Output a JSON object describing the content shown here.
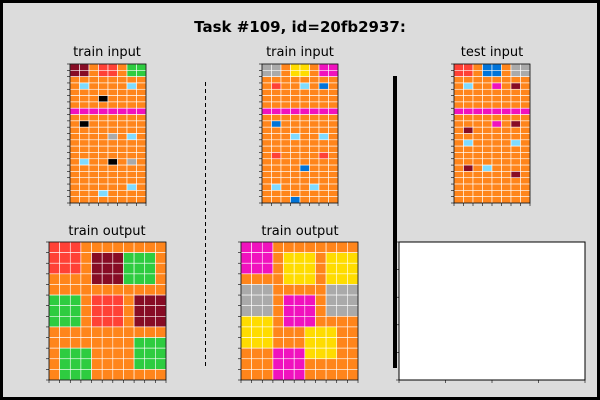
{
  "title": "Task #109, id=20fb2937:",
  "labels": {
    "train_input": "train input",
    "test_input": "test input",
    "train_output": "train output"
  },
  "palette": {
    "0": "#000000",
    "1": "#0074D9",
    "2": "#FF4136",
    "3": "#2ECC40",
    "4": "#FFDC00",
    "5": "#AAAAAA",
    "6": "#F012BE",
    "7": "#FF851B",
    "8": "#7FDBFF",
    "9": "#870C25"
  },
  "grids": {
    "train_input_1": [
      [
        9,
        9,
        7,
        2,
        2,
        7,
        3,
        3
      ],
      [
        9,
        9,
        7,
        2,
        2,
        7,
        3,
        3
      ],
      [
        7,
        7,
        7,
        7,
        7,
        7,
        7,
        7
      ],
      [
        7,
        8,
        7,
        7,
        7,
        7,
        8,
        7
      ],
      [
        7,
        7,
        7,
        7,
        7,
        7,
        7,
        7
      ],
      [
        7,
        7,
        7,
        0,
        7,
        7,
        7,
        7
      ],
      [
        7,
        7,
        7,
        7,
        7,
        7,
        7,
        7
      ],
      [
        6,
        6,
        6,
        6,
        6,
        6,
        6,
        6
      ],
      [
        7,
        7,
        7,
        7,
        7,
        7,
        7,
        7
      ],
      [
        7,
        0,
        7,
        7,
        7,
        7,
        7,
        7
      ],
      [
        7,
        7,
        7,
        7,
        7,
        7,
        7,
        7
      ],
      [
        7,
        7,
        7,
        7,
        5,
        7,
        8,
        7
      ],
      [
        7,
        7,
        7,
        7,
        7,
        7,
        7,
        7
      ],
      [
        7,
        7,
        7,
        7,
        7,
        7,
        7,
        7
      ],
      [
        7,
        7,
        7,
        7,
        7,
        7,
        7,
        7
      ],
      [
        7,
        8,
        7,
        7,
        0,
        7,
        5,
        7
      ],
      [
        7,
        7,
        7,
        7,
        7,
        7,
        7,
        7
      ],
      [
        7,
        7,
        7,
        7,
        7,
        7,
        7,
        7
      ],
      [
        7,
        7,
        7,
        7,
        7,
        7,
        7,
        7
      ],
      [
        7,
        7,
        7,
        7,
        7,
        7,
        8,
        7
      ],
      [
        7,
        7,
        7,
        8,
        7,
        7,
        7,
        7
      ],
      [
        7,
        7,
        7,
        7,
        7,
        7,
        7,
        7
      ]
    ],
    "train_input_2": [
      [
        5,
        5,
        7,
        4,
        4,
        7,
        6,
        6
      ],
      [
        5,
        5,
        7,
        4,
        4,
        7,
        6,
        6
      ],
      [
        7,
        7,
        7,
        7,
        7,
        7,
        7,
        7
      ],
      [
        7,
        2,
        7,
        7,
        8,
        7,
        1,
        7
      ],
      [
        7,
        7,
        7,
        7,
        7,
        7,
        7,
        7
      ],
      [
        7,
        7,
        7,
        7,
        7,
        7,
        7,
        7
      ],
      [
        7,
        7,
        7,
        7,
        7,
        7,
        7,
        7
      ],
      [
        6,
        6,
        6,
        6,
        6,
        6,
        6,
        6
      ],
      [
        7,
        7,
        7,
        7,
        7,
        7,
        7,
        7
      ],
      [
        7,
        1,
        7,
        7,
        7,
        7,
        7,
        7
      ],
      [
        7,
        7,
        7,
        7,
        7,
        7,
        7,
        7
      ],
      [
        7,
        7,
        7,
        8,
        7,
        7,
        8,
        7
      ],
      [
        7,
        7,
        7,
        7,
        7,
        7,
        7,
        7
      ],
      [
        7,
        7,
        7,
        7,
        7,
        7,
        7,
        7
      ],
      [
        7,
        2,
        7,
        7,
        7,
        7,
        2,
        7
      ],
      [
        7,
        7,
        7,
        7,
        7,
        7,
        7,
        7
      ],
      [
        7,
        7,
        7,
        7,
        1,
        7,
        7,
        7
      ],
      [
        7,
        7,
        7,
        7,
        7,
        7,
        7,
        7
      ],
      [
        7,
        7,
        7,
        7,
        7,
        7,
        7,
        7
      ],
      [
        7,
        8,
        7,
        7,
        7,
        8,
        7,
        7
      ],
      [
        7,
        7,
        7,
        7,
        7,
        7,
        7,
        7
      ],
      [
        7,
        7,
        7,
        1,
        7,
        7,
        7,
        7
      ]
    ],
    "test_input": [
      [
        2,
        2,
        7,
        1,
        1,
        7,
        5,
        5
      ],
      [
        2,
        2,
        7,
        1,
        1,
        7,
        5,
        5
      ],
      [
        7,
        7,
        7,
        7,
        7,
        7,
        7,
        7
      ],
      [
        7,
        8,
        7,
        7,
        6,
        7,
        9,
        7
      ],
      [
        7,
        7,
        7,
        7,
        7,
        7,
        7,
        7
      ],
      [
        7,
        7,
        7,
        7,
        7,
        7,
        7,
        7
      ],
      [
        7,
        7,
        7,
        7,
        7,
        7,
        7,
        7
      ],
      [
        6,
        6,
        6,
        6,
        6,
        6,
        6,
        6
      ],
      [
        7,
        7,
        7,
        7,
        7,
        7,
        7,
        7
      ],
      [
        7,
        7,
        7,
        7,
        6,
        7,
        9,
        7
      ],
      [
        7,
        9,
        7,
        7,
        7,
        7,
        7,
        7
      ],
      [
        7,
        7,
        7,
        7,
        7,
        7,
        7,
        7
      ],
      [
        7,
        8,
        7,
        7,
        7,
        7,
        8,
        7
      ],
      [
        7,
        7,
        7,
        7,
        7,
        7,
        7,
        7
      ],
      [
        7,
        7,
        7,
        7,
        7,
        7,
        7,
        7
      ],
      [
        7,
        7,
        7,
        7,
        7,
        7,
        7,
        7
      ],
      [
        7,
        9,
        7,
        8,
        7,
        7,
        7,
        7
      ],
      [
        7,
        7,
        7,
        7,
        7,
        7,
        9,
        7
      ],
      [
        7,
        7,
        7,
        7,
        7,
        7,
        7,
        7
      ],
      [
        7,
        7,
        7,
        7,
        7,
        7,
        7,
        7
      ],
      [
        7,
        7,
        7,
        7,
        7,
        7,
        7,
        7
      ],
      [
        7,
        7,
        7,
        7,
        7,
        7,
        7,
        7
      ]
    ],
    "train_output_1": [
      [
        2,
        2,
        2,
        7,
        7,
        7,
        7,
        7,
        7,
        7,
        7
      ],
      [
        2,
        2,
        2,
        7,
        9,
        9,
        9,
        3,
        3,
        3,
        7
      ],
      [
        2,
        2,
        2,
        7,
        9,
        9,
        9,
        3,
        3,
        3,
        7
      ],
      [
        7,
        7,
        7,
        7,
        9,
        9,
        9,
        3,
        3,
        3,
        7
      ],
      [
        7,
        7,
        7,
        7,
        7,
        7,
        7,
        7,
        7,
        7,
        7
      ],
      [
        3,
        3,
        3,
        7,
        2,
        2,
        2,
        7,
        9,
        9,
        9
      ],
      [
        3,
        3,
        3,
        7,
        2,
        2,
        2,
        7,
        9,
        9,
        9
      ],
      [
        3,
        3,
        3,
        7,
        2,
        2,
        2,
        7,
        9,
        9,
        9
      ],
      [
        7,
        7,
        7,
        7,
        7,
        7,
        7,
        7,
        7,
        7,
        7
      ],
      [
        7,
        7,
        7,
        7,
        7,
        7,
        7,
        7,
        3,
        3,
        3
      ],
      [
        7,
        3,
        3,
        3,
        7,
        7,
        7,
        7,
        3,
        3,
        3
      ],
      [
        7,
        3,
        3,
        3,
        7,
        7,
        7,
        7,
        3,
        3,
        3
      ],
      [
        7,
        3,
        3,
        3,
        7,
        7,
        7,
        7,
        7,
        7,
        7
      ]
    ],
    "train_output_2": [
      [
        6,
        6,
        6,
        7,
        7,
        7,
        7,
        7,
        7,
        7,
        7
      ],
      [
        6,
        6,
        6,
        7,
        4,
        4,
        4,
        7,
        4,
        4,
        4
      ],
      [
        6,
        6,
        6,
        7,
        4,
        4,
        4,
        7,
        4,
        4,
        4
      ],
      [
        7,
        7,
        7,
        7,
        4,
        4,
        4,
        7,
        4,
        4,
        4
      ],
      [
        5,
        5,
        5,
        7,
        7,
        7,
        7,
        7,
        5,
        5,
        5
      ],
      [
        5,
        5,
        5,
        7,
        6,
        6,
        6,
        7,
        5,
        5,
        5
      ],
      [
        5,
        5,
        5,
        7,
        6,
        6,
        6,
        7,
        5,
        5,
        5
      ],
      [
        4,
        4,
        4,
        7,
        6,
        6,
        6,
        7,
        7,
        7,
        7
      ],
      [
        4,
        4,
        4,
        7,
        7,
        7,
        4,
        4,
        4,
        7,
        7
      ],
      [
        4,
        4,
        4,
        7,
        7,
        7,
        4,
        4,
        4,
        7,
        7
      ],
      [
        7,
        7,
        7,
        6,
        6,
        6,
        4,
        4,
        4,
        7,
        7
      ],
      [
        7,
        7,
        7,
        6,
        6,
        6,
        7,
        7,
        7,
        7,
        7
      ],
      [
        7,
        7,
        7,
        6,
        6,
        6,
        7,
        7,
        7,
        7,
        7
      ]
    ]
  }
}
